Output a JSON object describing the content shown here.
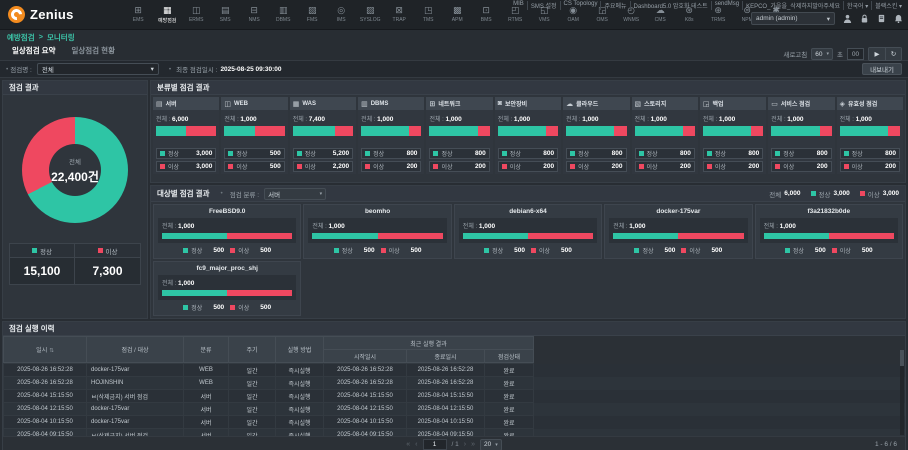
{
  "colors": {
    "teal": "#2ec5a5",
    "red": "#ef4860",
    "brand_orange": "#f28b1f",
    "breadcrumb_teal": "#3cc3a8"
  },
  "topbar": {
    "logo_text": "Zenius",
    "nav_items": [
      {
        "label": "EMS",
        "icon": "⊞",
        "cls": ""
      },
      {
        "label": "예방점검",
        "icon": "▦",
        "cls": "active"
      },
      {
        "label": "ERMS",
        "icon": "◫",
        "cls": ""
      },
      {
        "label": "SMS",
        "icon": "▤",
        "cls": ""
      },
      {
        "label": "NMS",
        "icon": "⊟",
        "cls": ""
      },
      {
        "label": "DBMS",
        "icon": "▥",
        "cls": ""
      },
      {
        "label": "FMS",
        "icon": "▧",
        "cls": ""
      },
      {
        "label": "IMS",
        "icon": "◎",
        "cls": ""
      },
      {
        "label": "SYSLOG",
        "icon": "▨",
        "cls": ""
      },
      {
        "label": "TRAP",
        "icon": "⊠",
        "cls": ""
      },
      {
        "label": "TMS",
        "icon": "◳",
        "cls": ""
      },
      {
        "label": "APM",
        "icon": "▩",
        "cls": ""
      },
      {
        "label": "BMS",
        "icon": "⊡",
        "cls": ""
      },
      {
        "label": "RTMS",
        "icon": "◰",
        "cls": ""
      },
      {
        "label": "VMS",
        "icon": "◱",
        "cls": ""
      },
      {
        "label": "OAM",
        "icon": "◉",
        "cls": ""
      },
      {
        "label": "OMS",
        "icon": "◲",
        "cls": ""
      },
      {
        "label": "WNMS",
        "icon": "◴",
        "cls": ""
      },
      {
        "label": "CMS",
        "icon": "☁",
        "cls": ""
      },
      {
        "label": "K8s",
        "icon": "⊛",
        "cls": ""
      },
      {
        "label": "TRMS",
        "icon": "⊕",
        "cls": ""
      },
      {
        "label": "NPM",
        "icon": "⊜",
        "cls": ""
      },
      {
        "label": "운영관리",
        "icon": "✱",
        "cls": ""
      }
    ],
    "quick_links": [
      {
        "label": "MIB"
      },
      {
        "label": "SMS 설정"
      },
      {
        "label": "CS Topology"
      },
      {
        "label": "주요메뉴"
      },
      {
        "label": "Dashboard5.0 암호화 테스트"
      },
      {
        "label": "sendMsg"
      },
      {
        "label": "KEPCO_가을을_삭제하지말아주세요"
      },
      {
        "label": "한국어 ▾"
      },
      {
        "label": "블랙스킨 ▾"
      }
    ],
    "account_label": "admin (admin)",
    "account_caret": "▾"
  },
  "breadcrumb": {
    "parent": "예방점검",
    "sep": ">",
    "current": "모니터링"
  },
  "tabs": [
    {
      "label": "일상점검 요약",
      "cls": "active"
    },
    {
      "label": "일상점검 현황",
      "cls": ""
    }
  ],
  "refresh": {
    "label": "새로고침",
    "interval": "60",
    "caret": "▾",
    "unit": "초",
    "counter": "00",
    "play": "▶",
    "reload": "↻"
  },
  "filter": {
    "bullet": "•",
    "label": "점검명 :",
    "value": "전체",
    "caret": "▾",
    "last_check_label": "최종 점검일시 :",
    "last_check_value": "2025-08-25 09:30:00",
    "export_label": "내보내기"
  },
  "summary_panel": {
    "title": "점검 결과",
    "center_label": "전체",
    "center_value": "22,400건",
    "normal_pct": 67.4,
    "legend": [
      {
        "label": "정상",
        "value": "15,100"
      },
      {
        "label": "이상",
        "value": "7,300"
      }
    ]
  },
  "category_panel": {
    "title": "분류별 점검 결과",
    "total_label": "전체 :",
    "normal_label": "정상",
    "abnormal_label": "이상",
    "cards": [
      {
        "name": "서버",
        "icon": "▤",
        "total": "6,000",
        "normal": "3,000",
        "abnormal": "3,000",
        "pct": 50
      },
      {
        "name": "WEB",
        "icon": "◫",
        "total": "1,000",
        "normal": "500",
        "abnormal": "500",
        "pct": 50
      },
      {
        "name": "WAS",
        "icon": "▦",
        "total": "7,400",
        "normal": "5,200",
        "abnormal": "2,200",
        "pct": 70.3
      },
      {
        "name": "DBMS",
        "icon": "▥",
        "total": "1,000",
        "normal": "800",
        "abnormal": "200",
        "pct": 80
      },
      {
        "name": "네트워크",
        "icon": "⊞",
        "total": "1,000",
        "normal": "800",
        "abnormal": "200",
        "pct": 80
      },
      {
        "name": "보안장비",
        "icon": "◙",
        "total": "1,000",
        "normal": "800",
        "abnormal": "200",
        "pct": 80
      },
      {
        "name": "클라우드",
        "icon": "☁",
        "total": "1,000",
        "normal": "800",
        "abnormal": "200",
        "pct": 80
      },
      {
        "name": "스토리지",
        "icon": "▧",
        "total": "1,000",
        "normal": "800",
        "abnormal": "200",
        "pct": 80
      },
      {
        "name": "백업",
        "icon": "◲",
        "total": "1,000",
        "normal": "800",
        "abnormal": "200",
        "pct": 80
      },
      {
        "name": "서비스 점검",
        "icon": "▭",
        "total": "1,000",
        "normal": "800",
        "abnormal": "200",
        "pct": 80
      },
      {
        "name": "유효성 점검",
        "icon": "◈",
        "total": "1,000",
        "normal": "800",
        "abnormal": "200",
        "pct": 80
      }
    ]
  },
  "target_panel": {
    "title": "대상별 점검 결과",
    "bullet": "•",
    "filter_label": "점검 분류 :",
    "filter_value": "서버",
    "caret": "▾",
    "total_label": "전체",
    "total": "6,000",
    "normal_label": "정상",
    "normal": "3,000",
    "abnormal_label": "이상",
    "abnormal": "3,000",
    "card_total_label": "전체 :",
    "normal_item_label": "정상",
    "abnormal_item_label": "이상",
    "cards": [
      {
        "name": "FreeBSD9.0",
        "total": "1,000",
        "normal": "500",
        "abnormal": "500",
        "pct": 50
      },
      {
        "name": "beomho",
        "total": "1,000",
        "normal": "500",
        "abnormal": "500",
        "pct": 50
      },
      {
        "name": "debian6-x64",
        "total": "1,000",
        "normal": "500",
        "abnormal": "500",
        "pct": 50
      },
      {
        "name": "docker-175var",
        "total": "1,000",
        "normal": "500",
        "abnormal": "500",
        "pct": 50
      },
      {
        "name": "f3a21832b0de",
        "total": "1,000",
        "normal": "500",
        "abnormal": "500",
        "pct": 50
      },
      {
        "name": "fc9_major_proc_shj",
        "total": "1,000",
        "normal": "500",
        "abnormal": "500",
        "pct": 50
      }
    ]
  },
  "history_panel": {
    "title": "점검 실행 이력",
    "columns": {
      "datetime": "일시",
      "sort_icon": "⇅",
      "target": "점검 / 대상",
      "category": "분류",
      "cycle": "주기",
      "method": "실행 방법",
      "recent_group": "최근 실행 결과",
      "start": "시작일시",
      "end": "종료일시",
      "status": "점검상태"
    },
    "rows": [
      {
        "dt": "2025-08-26 16:52:28",
        "target": "docker-175var",
        "cat": "WEB",
        "cycle": "일간",
        "method": "즉시실행",
        "start": "2025-08-26 16:52:28",
        "end": "2025-08-26 16:52:28",
        "status": "완료",
        "cls": "r-odd"
      },
      {
        "dt": "2025-08-26 16:52:28",
        "target": "HOJINSHIN",
        "cat": "WEB",
        "cycle": "일간",
        "method": "즉시실행",
        "start": "2025-08-26 16:52:28",
        "end": "2025-08-26 16:52:28",
        "status": "완료",
        "cls": "r-even"
      },
      {
        "dt": "2025-08-04 15:15:50",
        "target": "ㅂ(삭제금지) 서버 점검",
        "cat": "서버",
        "cycle": "일간",
        "method": "즉시실행",
        "start": "2025-08-04 15:15:50",
        "end": "2025-08-04 15:15:50",
        "status": "완료",
        "cls": "r-odd"
      },
      {
        "dt": "2025-08-04 12:15:50",
        "target": "docker-175var",
        "cat": "서버",
        "cycle": "일간",
        "method": "즉시실행",
        "start": "2025-08-04 12:15:50",
        "end": "2025-08-04 12:15:50",
        "status": "완료",
        "cls": "r-even"
      },
      {
        "dt": "2025-08-04 10:15:50",
        "target": "docker-175var",
        "cat": "서버",
        "cycle": "일간",
        "method": "즉시실행",
        "start": "2025-08-04 10:15:50",
        "end": "2025-08-04 10:15:50",
        "status": "완료",
        "cls": "r-odd"
      },
      {
        "dt": "2025-08-04 09:15:50",
        "target": "ㅂ(삭제금지) 서버 점검",
        "cat": "서버",
        "cycle": "일간",
        "method": "즉시실행",
        "start": "2025-08-04 09:15:50",
        "end": "2025-08-04 09:15:50",
        "status": "완료",
        "cls": "r-even"
      }
    ],
    "pagination": {
      "first": "«",
      "prev": "‹",
      "page": "1",
      "of": "/ 1",
      "next": "›",
      "last": "»",
      "page_size": "20",
      "caret": "▾",
      "range": "1 - 6 / 6"
    }
  }
}
